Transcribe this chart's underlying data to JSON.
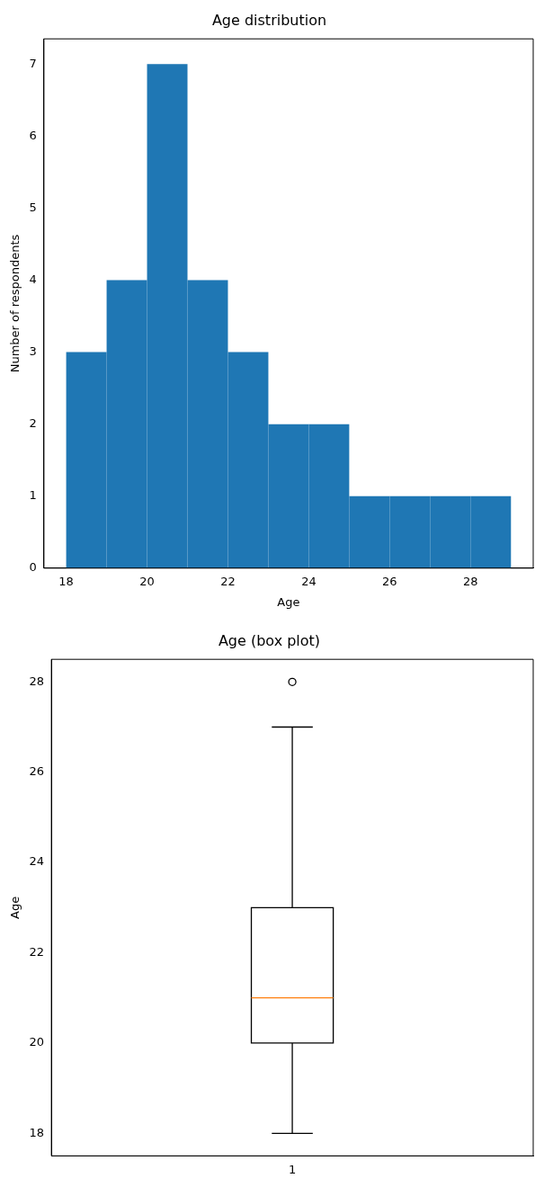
{
  "chart_data": [
    {
      "type": "histogram",
      "title": "Age distribution",
      "xlabel": "Age",
      "ylabel": "Number of respondents",
      "bins": [
        18,
        19,
        20,
        21,
        22,
        23,
        24,
        25,
        26,
        27,
        28,
        29
      ],
      "values": [
        3,
        4,
        7,
        4,
        3,
        2,
        2,
        1,
        1,
        1,
        1
      ],
      "color": "#1f77b4",
      "xlim": [
        17.45,
        29.55
      ],
      "ylim": [
        0,
        7.35
      ],
      "xticks": [
        18,
        20,
        22,
        24,
        26,
        28
      ],
      "yticks": [
        0,
        1,
        2,
        3,
        4,
        5,
        6,
        7
      ],
      "grid": false
    },
    {
      "type": "box",
      "title": "Age (box plot)",
      "ylabel": "Age",
      "categories": [
        "1"
      ],
      "boxes": [
        {
          "low": 18,
          "q1": 20,
          "median": 21,
          "q3": 23,
          "high": 27,
          "outliers": [
            28
          ]
        }
      ],
      "color": "#000000",
      "ylim": [
        17.5,
        28.5
      ],
      "yticks": [
        18,
        20,
        22,
        24,
        26,
        28
      ],
      "grid": false
    }
  ]
}
